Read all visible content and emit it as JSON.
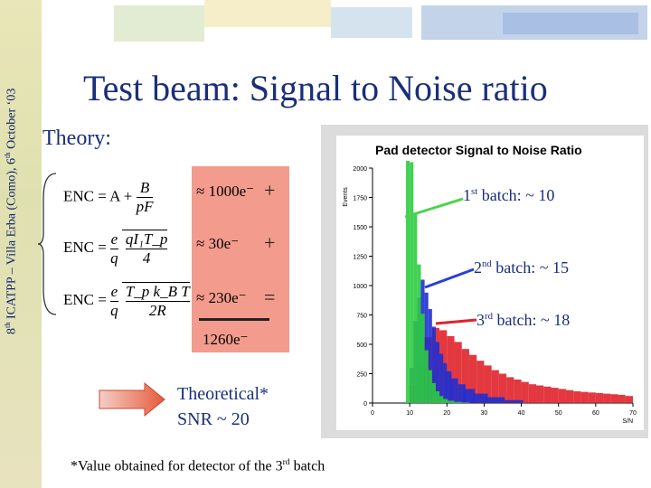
{
  "sidebar": {
    "text_a": "8",
    "sup_a": "th",
    "text_b": " ICATPP – Villa Erba (Como), 6",
    "sup_b": "th",
    "text_c": " October ‘03"
  },
  "title": "Test beam: Signal to Noise ratio",
  "theory_label": "Theory:",
  "equations": [
    {
      "lhs": "ENC = A +",
      "num": "B",
      "den": "pF",
      "approx": "≈ 1000e⁻",
      "op": "+"
    },
    {
      "lhs": "ENC =",
      "num": "e",
      "den": "q",
      "sqrt_num": "qI₁T_p",
      "sqrt_den": "4",
      "approx": "≈ 30e⁻",
      "op": "+"
    },
    {
      "lhs": "ENC =",
      "num": "e",
      "den": "q",
      "sqrt_num": "T_p k_B T",
      "sqrt_den": "2R",
      "approx": "≈ 230e⁻",
      "op": "="
    }
  ],
  "sum": "1260e⁻",
  "plot": {
    "title": "Pad detector Signal to Noise Ratio",
    "ylabel": "Events",
    "xlabel": "S/N"
  },
  "batches": [
    {
      "pre": "1",
      "sup": "st",
      "post": " batch: ~ 10",
      "color": "#4cd34c"
    },
    {
      "pre": "2",
      "sup": "nd",
      "post": " batch: ~ 15",
      "color": "#2a3fd6"
    },
    {
      "pre": "3",
      "sup": "rd",
      "post": " batch: ~ 18",
      "color": "#e0222b"
    }
  ],
  "theoretical": {
    "line1": "Theoretical*",
    "line2": "SNR ~ 20"
  },
  "footnote": {
    "pre": "*Value obtained for detector of the 3",
    "sup": "rd",
    "post": " batch"
  },
  "chart_data": {
    "type": "bar",
    "title": "Pad detector Signal to Noise Ratio",
    "xlabel": "S/N",
    "ylabel": "Events",
    "xlim": [
      0,
      70
    ],
    "ylim": [
      0,
      2000
    ],
    "xticks": [
      0,
      10,
      20,
      30,
      40,
      50,
      60,
      70
    ],
    "yticks": [
      0,
      250,
      500,
      750,
      1000,
      1250,
      1500,
      1750,
      2000
    ],
    "series": [
      {
        "name": "1st batch",
        "color": "#2ecc40",
        "x": [
          9.5,
          10.5,
          11.5,
          12.5,
          13.5,
          14.5,
          15.5,
          16.5,
          17.5,
          18.5,
          19.5,
          21,
          23,
          25
        ],
        "values": [
          2100,
          2050,
          1620,
          1180,
          760,
          450,
          280,
          170,
          100,
          60,
          35,
          20,
          10,
          5
        ]
      },
      {
        "name": "2nd batch",
        "color": "#1f2fd0",
        "x": [
          10.5,
          11.5,
          12.5,
          13.5,
          14.5,
          15.5,
          16.5,
          17.5,
          18.5,
          19.5,
          20.5,
          22,
          24,
          26,
          29,
          33,
          38
        ],
        "values": [
          300,
          700,
          900,
          1050,
          940,
          800,
          650,
          520,
          420,
          340,
          270,
          210,
          160,
          120,
          80,
          50,
          25
        ]
      },
      {
        "name": "3rd batch",
        "color": "#e0222b",
        "x": [
          11,
          13,
          15,
          17,
          19,
          21,
          23,
          25,
          27,
          29,
          31,
          33,
          35,
          37,
          39,
          41,
          43,
          45,
          47,
          49,
          51,
          53,
          55,
          57,
          59,
          61,
          63,
          65,
          67,
          69
        ],
        "values": [
          150,
          350,
          560,
          640,
          620,
          570,
          520,
          460,
          410,
          360,
          320,
          280,
          250,
          220,
          200,
          180,
          160,
          150,
          140,
          130,
          120,
          110,
          100,
          95,
          90,
          85,
          80,
          75,
          70,
          60
        ]
      }
    ]
  }
}
